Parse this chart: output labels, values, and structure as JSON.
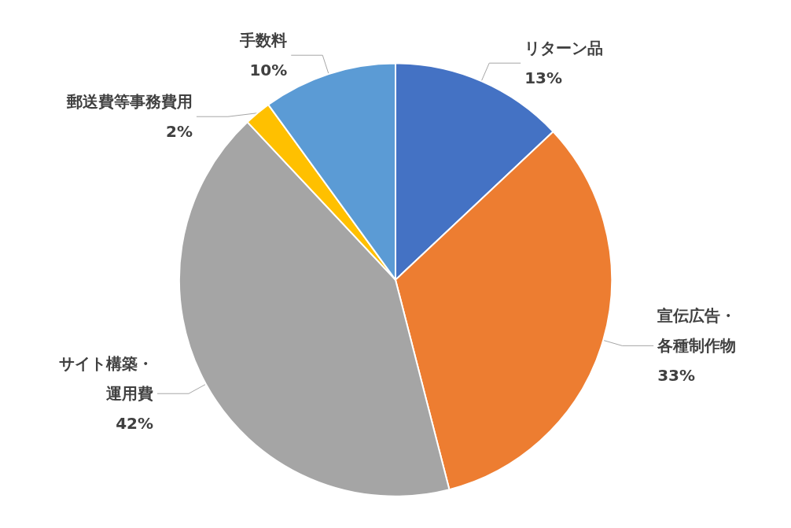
{
  "chart_data": {
    "type": "pie",
    "categories": [
      "リターン品",
      "宣伝広告・各種制作物",
      "サイト構築・運用費",
      "郵送費等事務費用",
      "手数料"
    ],
    "values": [
      13,
      33,
      42,
      2,
      10
    ],
    "colors": [
      "#4472c4",
      "#ed7d31",
      "#a5a5a5",
      "#ffc000",
      "#5b9bd5"
    ],
    "value_labels": [
      "13%",
      "33%",
      "42%",
      "2%",
      "10%"
    ],
    "legend": false
  }
}
